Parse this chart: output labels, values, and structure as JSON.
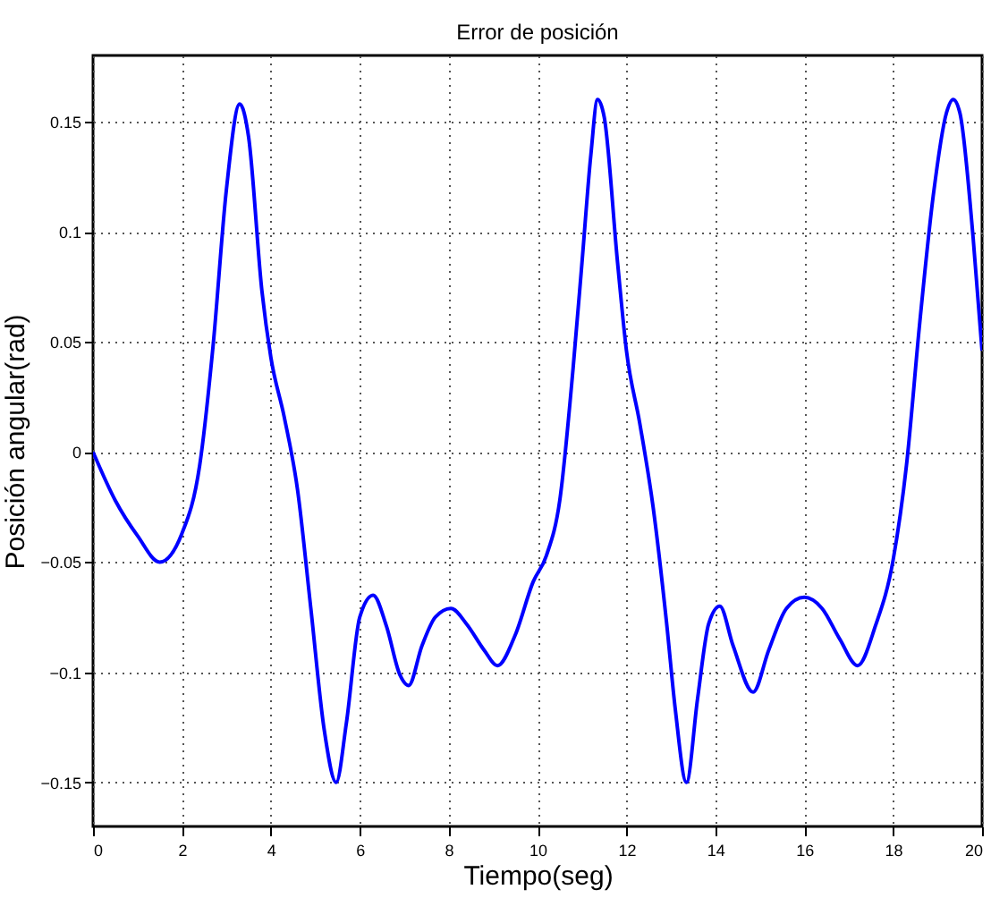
{
  "chart_data": {
    "type": "line",
    "title": "Error de posición",
    "xlabel": "Tiempo(seg)",
    "ylabel": "Posición angular(rad)",
    "x": [
      0,
      0.5,
      1,
      1.5,
      2,
      2.4,
      2.7,
      3.0,
      3.3,
      3.5,
      3.8,
      4.0,
      4.3,
      4.6,
      4.9,
      5.2,
      5.47,
      5.7,
      6.0,
      6.3,
      6.6,
      6.9,
      7.1,
      7.4,
      7.7,
      8.05,
      8.4,
      8.8,
      9.1,
      9.5,
      9.9,
      10.2,
      10.5,
      10.8,
      11.0,
      11.2,
      11.35,
      11.5,
      11.8,
      12.0,
      12.3,
      12.6,
      12.9,
      13.1,
      13.35,
      13.6,
      13.85,
      14.1,
      14.4,
      14.85,
      15.2,
      15.6,
      16.0,
      16.4,
      16.8,
      17.2,
      17.6,
      18.0,
      18.3,
      18.6,
      18.9,
      19.2,
      19.35,
      19.5,
      19.8,
      20
    ],
    "series": [
      {
        "color": "#0000ff",
        "values": [
          0,
          -0.022,
          -0.038,
          -0.05,
          -0.037,
          -0.006,
          0.048,
          0.119,
          0.158,
          0.143,
          0.073,
          0.043,
          0.016,
          -0.017,
          -0.071,
          -0.126,
          -0.15,
          -0.123,
          -0.075,
          -0.065,
          -0.079,
          -0.101,
          -0.106,
          -0.088,
          -0.075,
          -0.071,
          -0.078,
          -0.09,
          -0.097,
          -0.083,
          -0.059,
          -0.047,
          -0.022,
          0.038,
          0.086,
          0.135,
          0.16,
          0.152,
          0.086,
          0.046,
          0.013,
          -0.025,
          -0.077,
          -0.117,
          -0.15,
          -0.112,
          -0.078,
          -0.07,
          -0.088,
          -0.109,
          -0.09,
          -0.071,
          -0.066,
          -0.071,
          -0.085,
          -0.097,
          -0.079,
          -0.049,
          -0.006,
          0.059,
          0.116,
          0.154,
          0.16,
          0.154,
          0.097,
          0.046
        ]
      }
    ],
    "xlim": [
      0,
      20
    ],
    "xticks": [
      0,
      2,
      4,
      6,
      8,
      10,
      12,
      14,
      16,
      18,
      20
    ],
    "ylim": [
      -0.17,
      0.18
    ],
    "yticks": [
      -0.15,
      -0.1,
      -0.05,
      0,
      0.05,
      0.1,
      0.15
    ],
    "grid": true,
    "marker": "none",
    "line_style": "solid"
  }
}
